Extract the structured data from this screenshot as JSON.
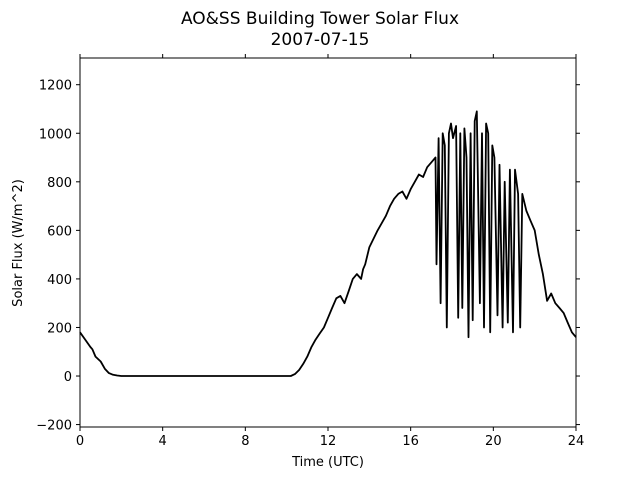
{
  "chart_data": {
    "type": "line",
    "title": "AO&SS Building Tower Solar Flux",
    "subtitle": "2007-07-15",
    "xlabel": "Time (UTC)",
    "ylabel": "Solar Flux (W/m^2)",
    "xlim": [
      0,
      24
    ],
    "ylim": [
      -210,
      1310
    ],
    "x_ticks": [
      0,
      4,
      8,
      12,
      16,
      20,
      24
    ],
    "y_ticks": [
      -200,
      0,
      200,
      400,
      600,
      800,
      1000,
      1200
    ],
    "grid": false,
    "legend": "none",
    "colors": {
      "line": "#000000",
      "frame": "#000000",
      "background": "#ffffff"
    },
    "series": [
      {
        "x": [
          0.0,
          0.25,
          0.5,
          0.6,
          0.75,
          1.0,
          1.2,
          1.4,
          1.6,
          1.8,
          2.0,
          2.2,
          4.0,
          6.0,
          8.0,
          10.0,
          10.2,
          10.4,
          10.6,
          10.8,
          11.0,
          11.2,
          11.4,
          11.6,
          11.8,
          12.0,
          12.2,
          12.4,
          12.6,
          12.8,
          13.0,
          13.2,
          13.4,
          13.6,
          13.7,
          13.8,
          14.0,
          14.4,
          14.8,
          15.0,
          15.2,
          15.4,
          15.6,
          15.8,
          16.0,
          16.2,
          16.4,
          16.6,
          16.8,
          17.0,
          17.2,
          17.25,
          17.35,
          17.45,
          17.55,
          17.65,
          17.75,
          17.85,
          17.95,
          18.05,
          18.2,
          18.3,
          18.4,
          18.5,
          18.6,
          18.7,
          18.8,
          18.9,
          19.0,
          19.1,
          19.2,
          19.35,
          19.45,
          19.55,
          19.65,
          19.75,
          19.85,
          19.95,
          20.05,
          20.2,
          20.3,
          20.45,
          20.55,
          20.7,
          20.8,
          20.95,
          21.05,
          21.2,
          21.3,
          21.4,
          21.6,
          21.8,
          22.0,
          22.2,
          22.4,
          22.6,
          22.8,
          23.0,
          23.2,
          23.4,
          23.6,
          23.8,
          24.0
        ],
        "values": [
          180,
          150,
          120,
          110,
          80,
          60,
          30,
          12,
          5,
          2,
          0,
          0,
          0,
          0,
          0,
          0,
          0,
          8,
          25,
          50,
          80,
          120,
          150,
          175,
          200,
          240,
          280,
          320,
          330,
          300,
          350,
          400,
          420,
          400,
          440,
          460,
          530,
          600,
          660,
          700,
          730,
          750,
          760,
          730,
          770,
          800,
          830,
          820,
          860,
          880,
          900,
          460,
          980,
          300,
          1000,
          950,
          200,
          1000,
          1040,
          980,
          1030,
          240,
          1000,
          280,
          1020,
          900,
          160,
          1000,
          230,
          1050,
          1090,
          300,
          1000,
          200,
          1040,
          1000,
          180,
          950,
          900,
          250,
          870,
          200,
          800,
          220,
          850,
          180,
          850,
          750,
          200,
          750,
          680,
          640,
          600,
          500,
          420,
          310,
          340,
          300,
          280,
          260,
          220,
          180,
          160
        ]
      }
    ]
  }
}
